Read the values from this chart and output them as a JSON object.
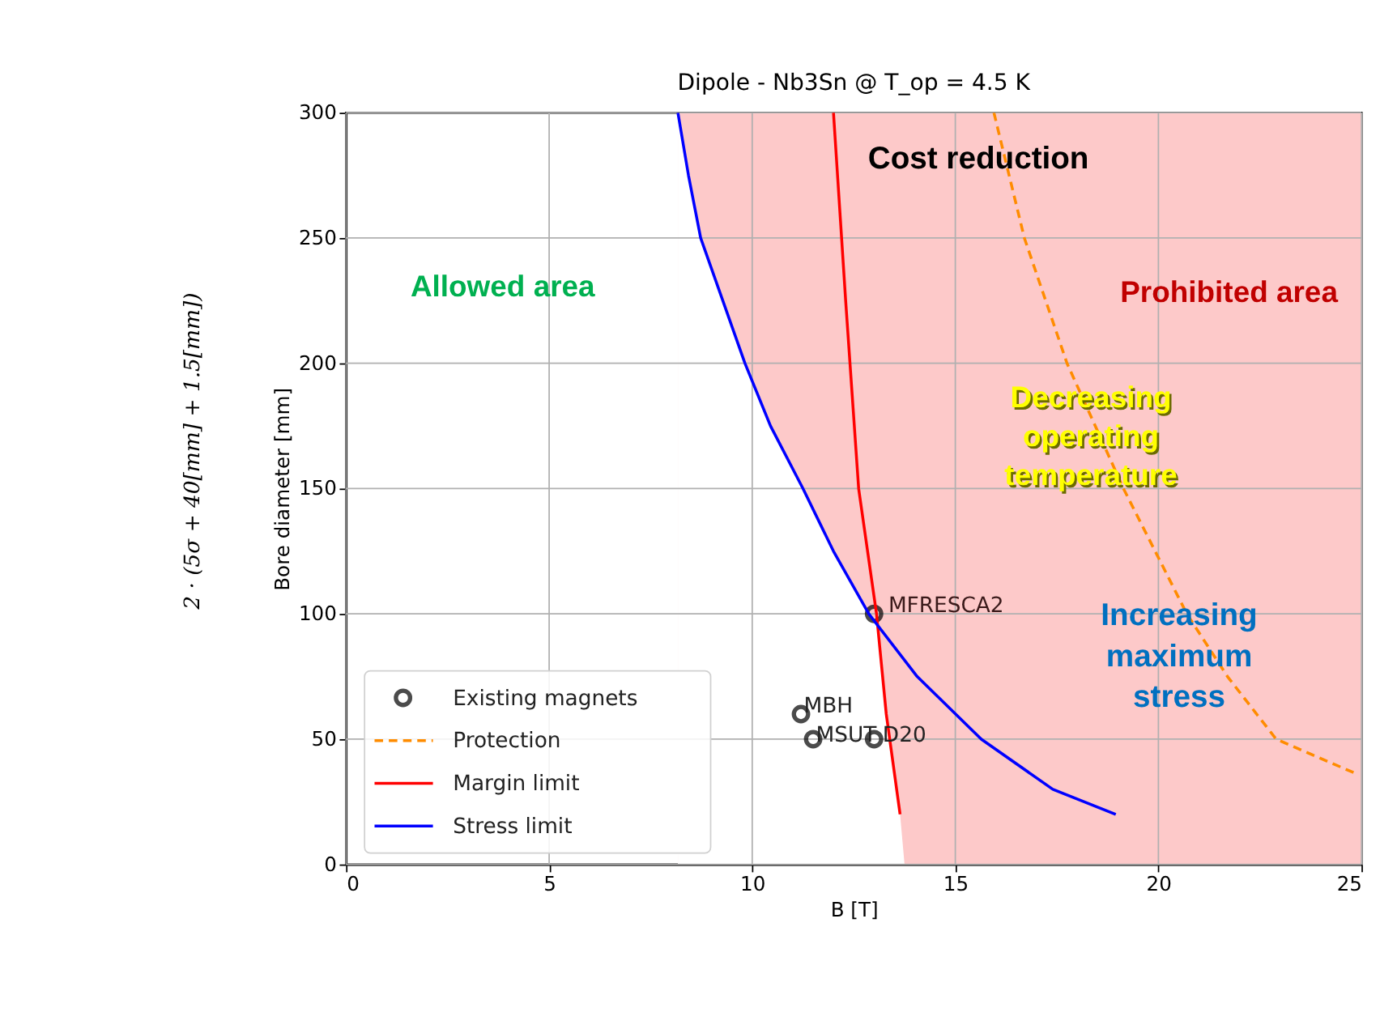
{
  "chart_data": {
    "type": "line",
    "title": "Dipole - Nb3Sn @ T_op = 4.5 K",
    "xlabel": "B [T]",
    "ylabel": "Bore diameter [mm]",
    "xlim": [
      0,
      25
    ],
    "ylim": [
      0,
      300
    ],
    "xticks": [
      0,
      5,
      10,
      15,
      20,
      25
    ],
    "yticks": [
      0,
      50,
      100,
      150,
      200,
      250,
      300
    ],
    "grid": true,
    "legend": "bottom left",
    "bands": [
      {
        "axis": "x",
        "from": 8.17,
        "to": 25,
        "color": "#fdc9c9"
      }
    ],
    "series": [
      {
        "type": "area",
        "color": "#ffffff",
        "x": [
          8.17,
          8.43,
          8.73,
          9.82,
          10.45,
          11.25,
          12.0,
          12.87,
          13.1,
          13.3,
          13.64,
          13.75
        ],
        "values": [
          300,
          275,
          250,
          200,
          175,
          150,
          125,
          100,
          97,
          60,
          20,
          0
        ]
      },
      {
        "type": "scatter",
        "name": "Existing magnets",
        "color": "#000000",
        "marker": "circle",
        "x": [
          13,
          11.2,
          11.5,
          13
        ],
        "values": [
          100,
          60,
          50,
          50
        ]
      },
      {
        "name": "Protection",
        "color": "#ff8c00",
        "line_style": "dashed",
        "x": [
          15.95,
          16.7,
          17.75,
          19.14,
          20.7,
          21.7,
          22.9,
          24.9
        ],
        "values": [
          300,
          250,
          200,
          150,
          100,
          75,
          50,
          36
        ]
      },
      {
        "name": "Margin limit",
        "color": "#ff0000",
        "line_style": "solid",
        "x": [
          12.0,
          12.3,
          12.62,
          13.06,
          13.3,
          13.64
        ],
        "values": [
          300,
          225,
          150,
          100,
          60,
          20
        ]
      },
      {
        "name": "Stress limit",
        "color": "#0000ff",
        "line_style": "solid",
        "x": [
          8.17,
          8.43,
          8.73,
          9.82,
          10.45,
          11.25,
          12.0,
          12.87,
          14.06,
          15.64,
          17.4,
          18.95
        ],
        "values": [
          300,
          275,
          250,
          200,
          175,
          150,
          125,
          100,
          75,
          50,
          30,
          20
        ]
      }
    ],
    "annotations": [
      "2 · (5σ + 40[mm] + 1.5[mm])",
      {
        "text": "MFRESCA2",
        "x": 13,
        "y": 100
      },
      {
        "text": "MBH",
        "x": 11.2,
        "y": 60
      },
      {
        "text": "MSUT",
        "x": 11.5,
        "y": 50
      },
      {
        "text": "D20",
        "x": 13,
        "y": 50
      },
      "Cost reduction",
      "Allowed area",
      "Prohibited area",
      "Decreasing\noperating\ntemperature",
      "Increasing\nmaximum\nstress"
    ]
  }
}
